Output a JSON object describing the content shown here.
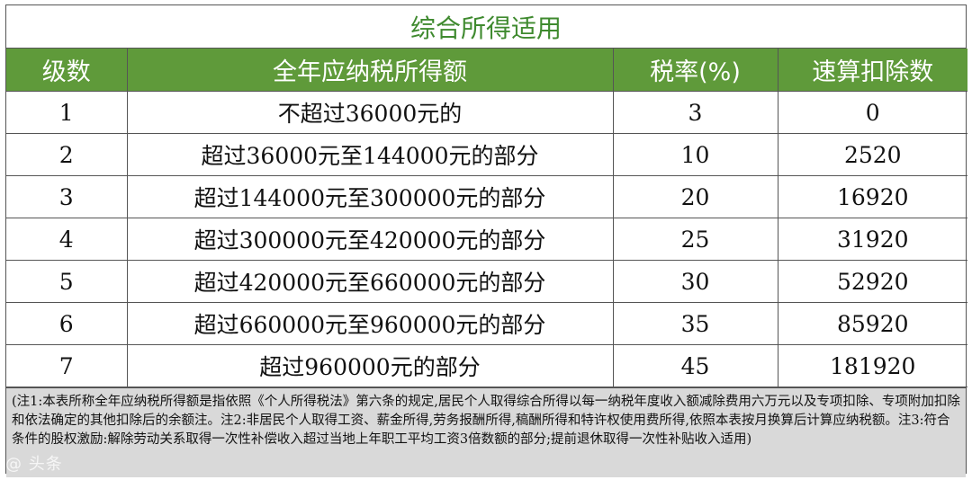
{
  "title": "综合所得适用",
  "headers": [
    "级数",
    "全年应纳税所得额",
    "税率(%)",
    "速算扣除数"
  ],
  "rows": [
    {
      "level": "1",
      "range": "不超过36000元的",
      "rate": "3",
      "deduction": "0"
    },
    {
      "level": "2",
      "range": "超过36000元至144000元的部分",
      "rate": "10",
      "deduction": "2520"
    },
    {
      "level": "3",
      "range": "超过144000元至300000元的部分",
      "rate": "20",
      "deduction": "16920"
    },
    {
      "level": "4",
      "range": "超过300000元至420000元的部分",
      "rate": "25",
      "deduction": "31920"
    },
    {
      "level": "5",
      "range": "超过420000元至660000元的部分",
      "rate": "30",
      "deduction": "52920"
    },
    {
      "level": "6",
      "range": "超过660000元至960000元的部分",
      "rate": "35",
      "deduction": "85920"
    },
    {
      "level": "7",
      "range": "超过960000元的部分",
      "rate": "45",
      "deduction": "181920"
    }
  ],
  "note": "(注1:本表所称全年应纳税所得额是指依照《个人所得税法》第六条的规定,居民个人取得综合所得以每一纳税年度收入额减除费用六万元以及专项扣除、专项附加扣除和依法确定的其他扣除后的余额注。注2:非居民个人取得工资、薪金所得,劳务报酬所得,稿酬所得和特许权使用费所得,依照本表按月换算后计算应纳税额。注3:符合条件的股权激励:解除劳动关系取得一次性补偿收入超过当地上年职工平均工资3倍数额的部分;提前退休取得一次性补贴收入适用)",
  "watermark": "@ 头条"
}
